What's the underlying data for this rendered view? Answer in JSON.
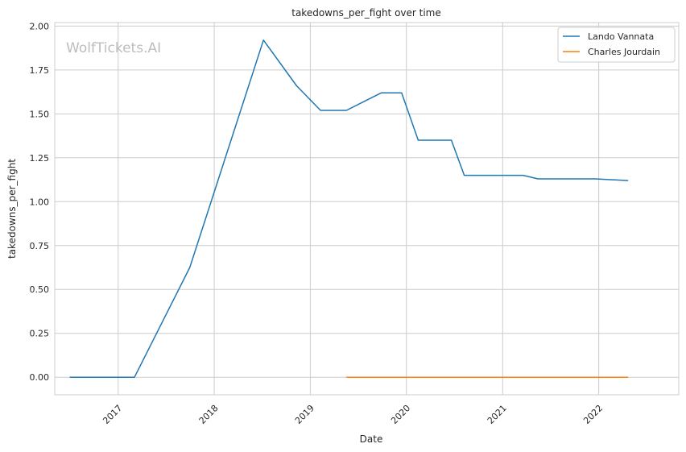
{
  "chart_data": {
    "type": "line",
    "title": "takedowns_per_fight over time",
    "xlabel": "Date",
    "ylabel": "takedowns_per_fight",
    "watermark": "WolfTickets.AI",
    "x_ticks": [
      "2017",
      "2018",
      "2019",
      "2020",
      "2021",
      "2022"
    ],
    "y_ticks": [
      "0.00",
      "0.25",
      "0.50",
      "0.75",
      "1.00",
      "1.25",
      "1.50",
      "1.75",
      "2.00"
    ],
    "ylim": [
      -0.1,
      2.02
    ],
    "xlim": [
      "2016-05-05",
      "2022-11-01"
    ],
    "grid": true,
    "legend_position": "top-right",
    "series": [
      {
        "name": "Lando Vannata",
        "color": "#1f77b4",
        "points": [
          {
            "x": "2016-07-01",
            "y": 0.0
          },
          {
            "x": "2016-12-10",
            "y": 0.0
          },
          {
            "x": "2017-03-04",
            "y": 0.0
          },
          {
            "x": "2017-09-30",
            "y": 0.625
          },
          {
            "x": "2018-07-07",
            "y": 1.92
          },
          {
            "x": "2018-11-10",
            "y": 1.66
          },
          {
            "x": "2019-02-09",
            "y": 1.52
          },
          {
            "x": "2019-05-18",
            "y": 1.52
          },
          {
            "x": "2019-09-28",
            "y": 1.62
          },
          {
            "x": "2019-12-14",
            "y": 1.62
          },
          {
            "x": "2020-02-15",
            "y": 1.35
          },
          {
            "x": "2020-06-20",
            "y": 1.35
          },
          {
            "x": "2020-08-08",
            "y": 1.15
          },
          {
            "x": "2021-03-20",
            "y": 1.15
          },
          {
            "x": "2021-05-15",
            "y": 1.13
          },
          {
            "x": "2021-12-18",
            "y": 1.13
          },
          {
            "x": "2022-04-23",
            "y": 1.12
          }
        ]
      },
      {
        "name": "Charles Jourdain",
        "color": "#ff7f0e",
        "points": [
          {
            "x": "2019-05-18",
            "y": 0.0
          },
          {
            "x": "2019-10-18",
            "y": 0.0
          },
          {
            "x": "2020-03-07",
            "y": 0.0
          },
          {
            "x": "2020-08-01",
            "y": 0.0
          },
          {
            "x": "2021-01-20",
            "y": 0.0
          },
          {
            "x": "2021-07-15",
            "y": 0.0
          },
          {
            "x": "2021-12-18",
            "y": 0.0
          },
          {
            "x": "2022-04-23",
            "y": 0.0
          }
        ]
      }
    ]
  }
}
